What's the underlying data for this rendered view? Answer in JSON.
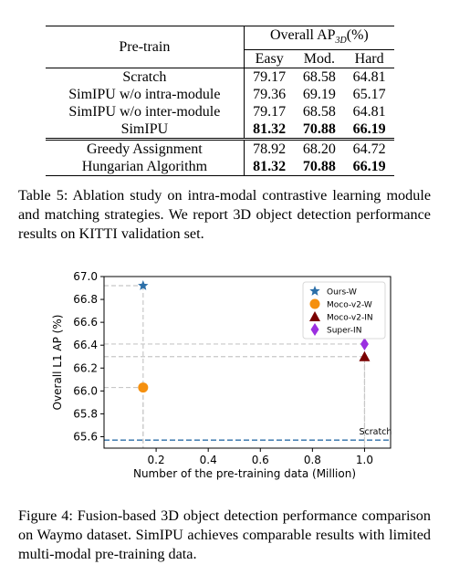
{
  "table": {
    "header": {
      "pretrain": "Pre-train",
      "overall_prefix": "Overall AP",
      "overall_sub": "3D",
      "overall_suffix": "(%)",
      "easy": "Easy",
      "mod": "Mod.",
      "hard": "Hard"
    },
    "rows": [
      {
        "name": "Scratch",
        "easy": "79.17",
        "mod": "68.58",
        "hard": "64.81",
        "bold": false
      },
      {
        "name": "SimIPU w/o intra-module",
        "easy": "79.36",
        "mod": "69.19",
        "hard": "65.17",
        "bold": false
      },
      {
        "name": "SimIPU w/o inter-module",
        "easy": "79.17",
        "mod": "68.58",
        "hard": "64.81",
        "bold": false
      },
      {
        "name": "SimIPU",
        "easy": "81.32",
        "mod": "70.88",
        "hard": "66.19",
        "bold": true
      },
      {
        "name": "Greedy Assignment",
        "easy": "78.92",
        "mod": "68.20",
        "hard": "64.72",
        "bold": false
      },
      {
        "name": "Hungarian Algorithm",
        "easy": "81.32",
        "mod": "70.88",
        "hard": "66.19",
        "bold": true
      }
    ]
  },
  "table_caption": "Table 5: Ablation study on intra-modal contrastive learning module and matching strategies. We report 3D object detection performance results on KITTI validation set.",
  "chart_data": {
    "type": "scatter",
    "xlabel": "Number of the pre-training data (Million)",
    "ylabel": "Overall L1 AP (%)",
    "xlim": [
      0.0,
      1.1
    ],
    "ylim": [
      65.5,
      67.0
    ],
    "xticks": [
      "0.2",
      "0.4",
      "0.6",
      "0.8",
      "1.0"
    ],
    "xtick_values": [
      0.2,
      0.4,
      0.6,
      0.8,
      1.0
    ],
    "yticks": [
      "65.6",
      "65.8",
      "66.0",
      "66.2",
      "66.4",
      "66.6",
      "66.8",
      "67.0"
    ],
    "ytick_values": [
      65.6,
      65.8,
      66.0,
      66.2,
      66.4,
      66.6,
      66.8,
      67.0
    ],
    "grid": false,
    "legend_position": "top-right",
    "series": [
      {
        "name": "Ours-W",
        "x": 0.15,
        "y": 66.92,
        "marker": "star",
        "color": "#2c6fa8"
      },
      {
        "name": "Moco-v2-W",
        "x": 0.15,
        "y": 66.03,
        "marker": "circle",
        "color": "#f5900f"
      },
      {
        "name": "Moco-v2-IN",
        "x": 1.0,
        "y": 66.3,
        "marker": "triangle",
        "color": "#7a0000"
      },
      {
        "name": "Super-IN",
        "x": 1.0,
        "y": 66.41,
        "marker": "diamond",
        "color": "#9b2fe0"
      }
    ],
    "baseline": {
      "label": "Scratch",
      "y": 65.57,
      "color": "#2c6fa8"
    }
  },
  "figure_caption": "Figure 4: Fusion-based 3D object detection performance comparison on Waymo dataset. SimIPU achieves comparable results with limited multi-modal pre-training data."
}
